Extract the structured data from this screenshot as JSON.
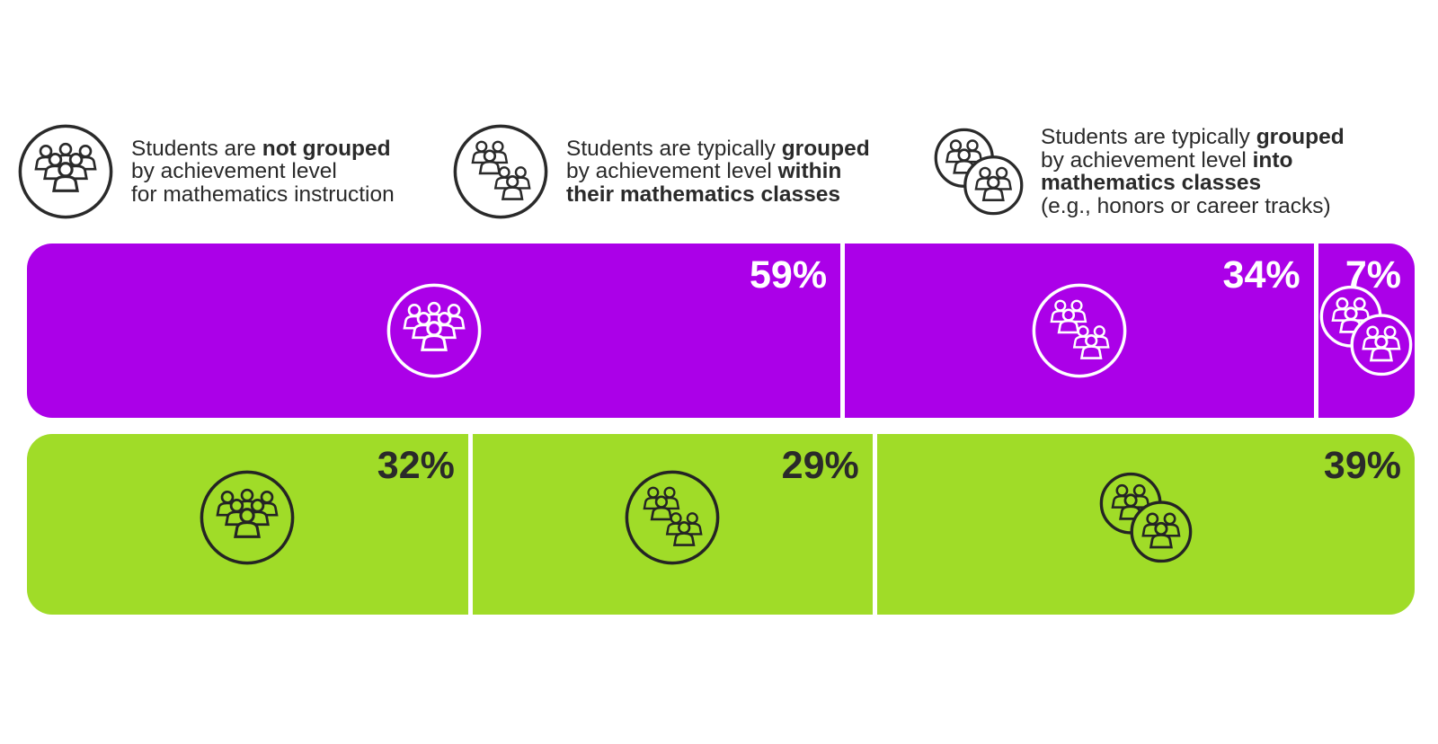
{
  "colors": {
    "purple": "#AB00E8",
    "green": "#A0DC28",
    "text_dark": "#2A2A2A",
    "label_on_purple": "#FFFFFF",
    "label_on_green": "#2A2A2A"
  },
  "legend": {
    "items": [
      {
        "icon": "crowd-circle-icon",
        "runs": [
          {
            "t": "Students are ",
            "b": false
          },
          {
            "t": "not grouped",
            "b": true
          },
          {
            "t": "\nby achievement level\nfor mathematics instruction",
            "b": false
          }
        ]
      },
      {
        "icon": "two-groups-circle-icon",
        "runs": [
          {
            "t": "Students are typically ",
            "b": false
          },
          {
            "t": "grouped",
            "b": true
          },
          {
            "t": "\nby achievement level ",
            "b": false
          },
          {
            "t": "within",
            "b": true
          },
          {
            "t": "\n",
            "b": false
          },
          {
            "t": "their mathematics classes",
            "b": true
          }
        ]
      },
      {
        "icon": "two-group-circles-icon",
        "runs": [
          {
            "t": "Students are typically ",
            "b": false
          },
          {
            "t": "grouped",
            "b": true
          },
          {
            "t": "\nby achievement level ",
            "b": false
          },
          {
            "t": "into",
            "b": true
          },
          {
            "t": "\n",
            "b": false
          },
          {
            "t": "mathematics classes",
            "b": true
          },
          {
            "t": "\n(e.g., honors or career tracks)",
            "b": false
          }
        ]
      }
    ]
  },
  "chart_data": {
    "type": "bar",
    "subtype": "horizontal-stacked-percentage",
    "legend_position": "top",
    "value_format": "percent",
    "categories": [
      "Students are not grouped by achievement level for mathematics instruction",
      "Students are typically grouped by achievement level within their mathematics classes",
      "Students are typically grouped by achievement level into mathematics classes (e.g., honors or career tracks)"
    ],
    "series": [
      {
        "name": "top-bar",
        "color": "#AB00E8",
        "values": [
          59,
          34,
          7
        ],
        "labels": [
          "59%",
          "34%",
          "7%"
        ]
      },
      {
        "name": "bottom-bar",
        "color": "#A0DC28",
        "values": [
          32,
          29,
          39
        ],
        "labels": [
          "32%",
          "29%",
          "39%"
        ]
      }
    ]
  }
}
